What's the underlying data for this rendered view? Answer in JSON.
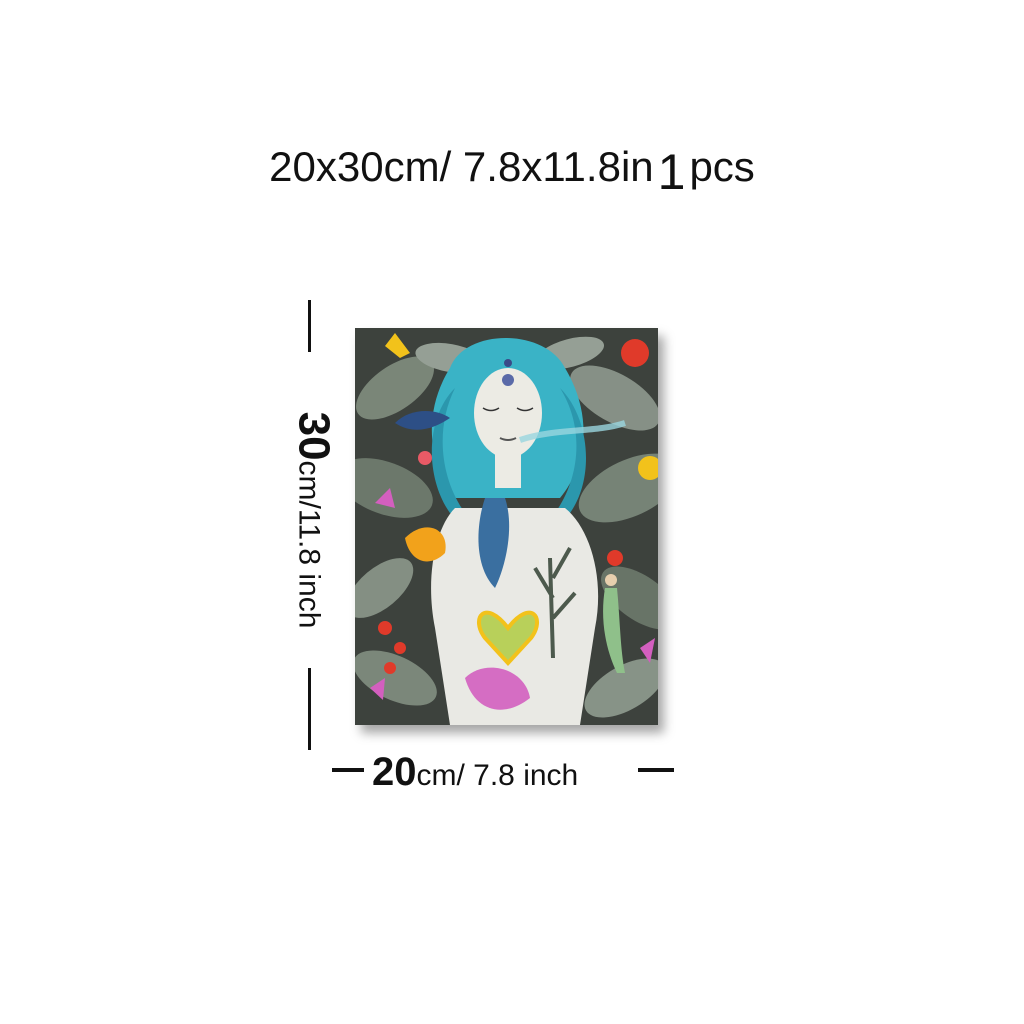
{
  "header": {
    "size_text": "20x30cm/ 7.8x11.8in",
    "count_number": "1",
    "count_unit": "pcs"
  },
  "height_label": {
    "value": "30",
    "unit_text": "cm/11.8 inch"
  },
  "width_label": {
    "value": "20",
    "unit_text": "cm/ 7.8 inch"
  },
  "colors": {
    "hair": "#3ab3c6",
    "foliage": "#5f6b5e",
    "heart": "#b8d05a",
    "accent_red": "#e03a2a",
    "accent_yellow": "#f2c21b",
    "accent_pink": "#d35fbf"
  }
}
